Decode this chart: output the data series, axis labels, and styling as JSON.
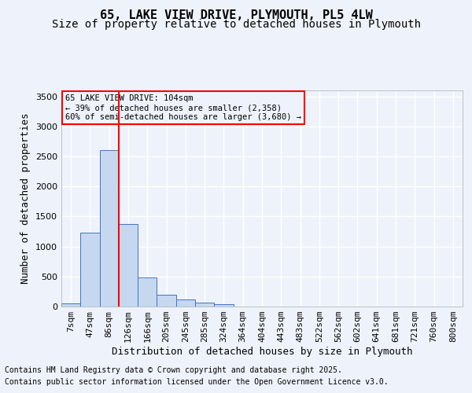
{
  "title": "65, LAKE VIEW DRIVE, PLYMOUTH, PL5 4LW",
  "subtitle": "Size of property relative to detached houses in Plymouth",
  "xlabel": "Distribution of detached houses by size in Plymouth",
  "ylabel": "Number of detached properties",
  "categories": [
    "7sqm",
    "47sqm",
    "86sqm",
    "126sqm",
    "166sqm",
    "205sqm",
    "245sqm",
    "285sqm",
    "324sqm",
    "364sqm",
    "404sqm",
    "443sqm",
    "483sqm",
    "522sqm",
    "562sqm",
    "602sqm",
    "641sqm",
    "681sqm",
    "721sqm",
    "760sqm",
    "800sqm"
  ],
  "bar_values": [
    50,
    1230,
    2600,
    1370,
    480,
    200,
    115,
    65,
    35,
    0,
    0,
    0,
    0,
    0,
    0,
    0,
    0,
    0,
    0,
    0,
    0
  ],
  "bar_color": "#c5d8f0",
  "bar_edge_color": "#4472c4",
  "ylim": [
    0,
    3600
  ],
  "yticks": [
    0,
    500,
    1000,
    1500,
    2000,
    2500,
    3000,
    3500
  ],
  "property_line_x": 2.5,
  "annotation_text": "65 LAKE VIEW DRIVE: 104sqm\n← 39% of detached houses are smaller (2,358)\n60% of semi-detached houses are larger (3,680) →",
  "footnote1": "Contains HM Land Registry data © Crown copyright and database right 2025.",
  "footnote2": "Contains public sector information licensed under the Open Government Licence v3.0.",
  "bg_color": "#eef3fb",
  "grid_color": "#ffffff",
  "title_fontsize": 11,
  "subtitle_fontsize": 10,
  "xlabel_fontsize": 9,
  "ylabel_fontsize": 9,
  "tick_fontsize": 8,
  "footnote_fontsize": 7
}
